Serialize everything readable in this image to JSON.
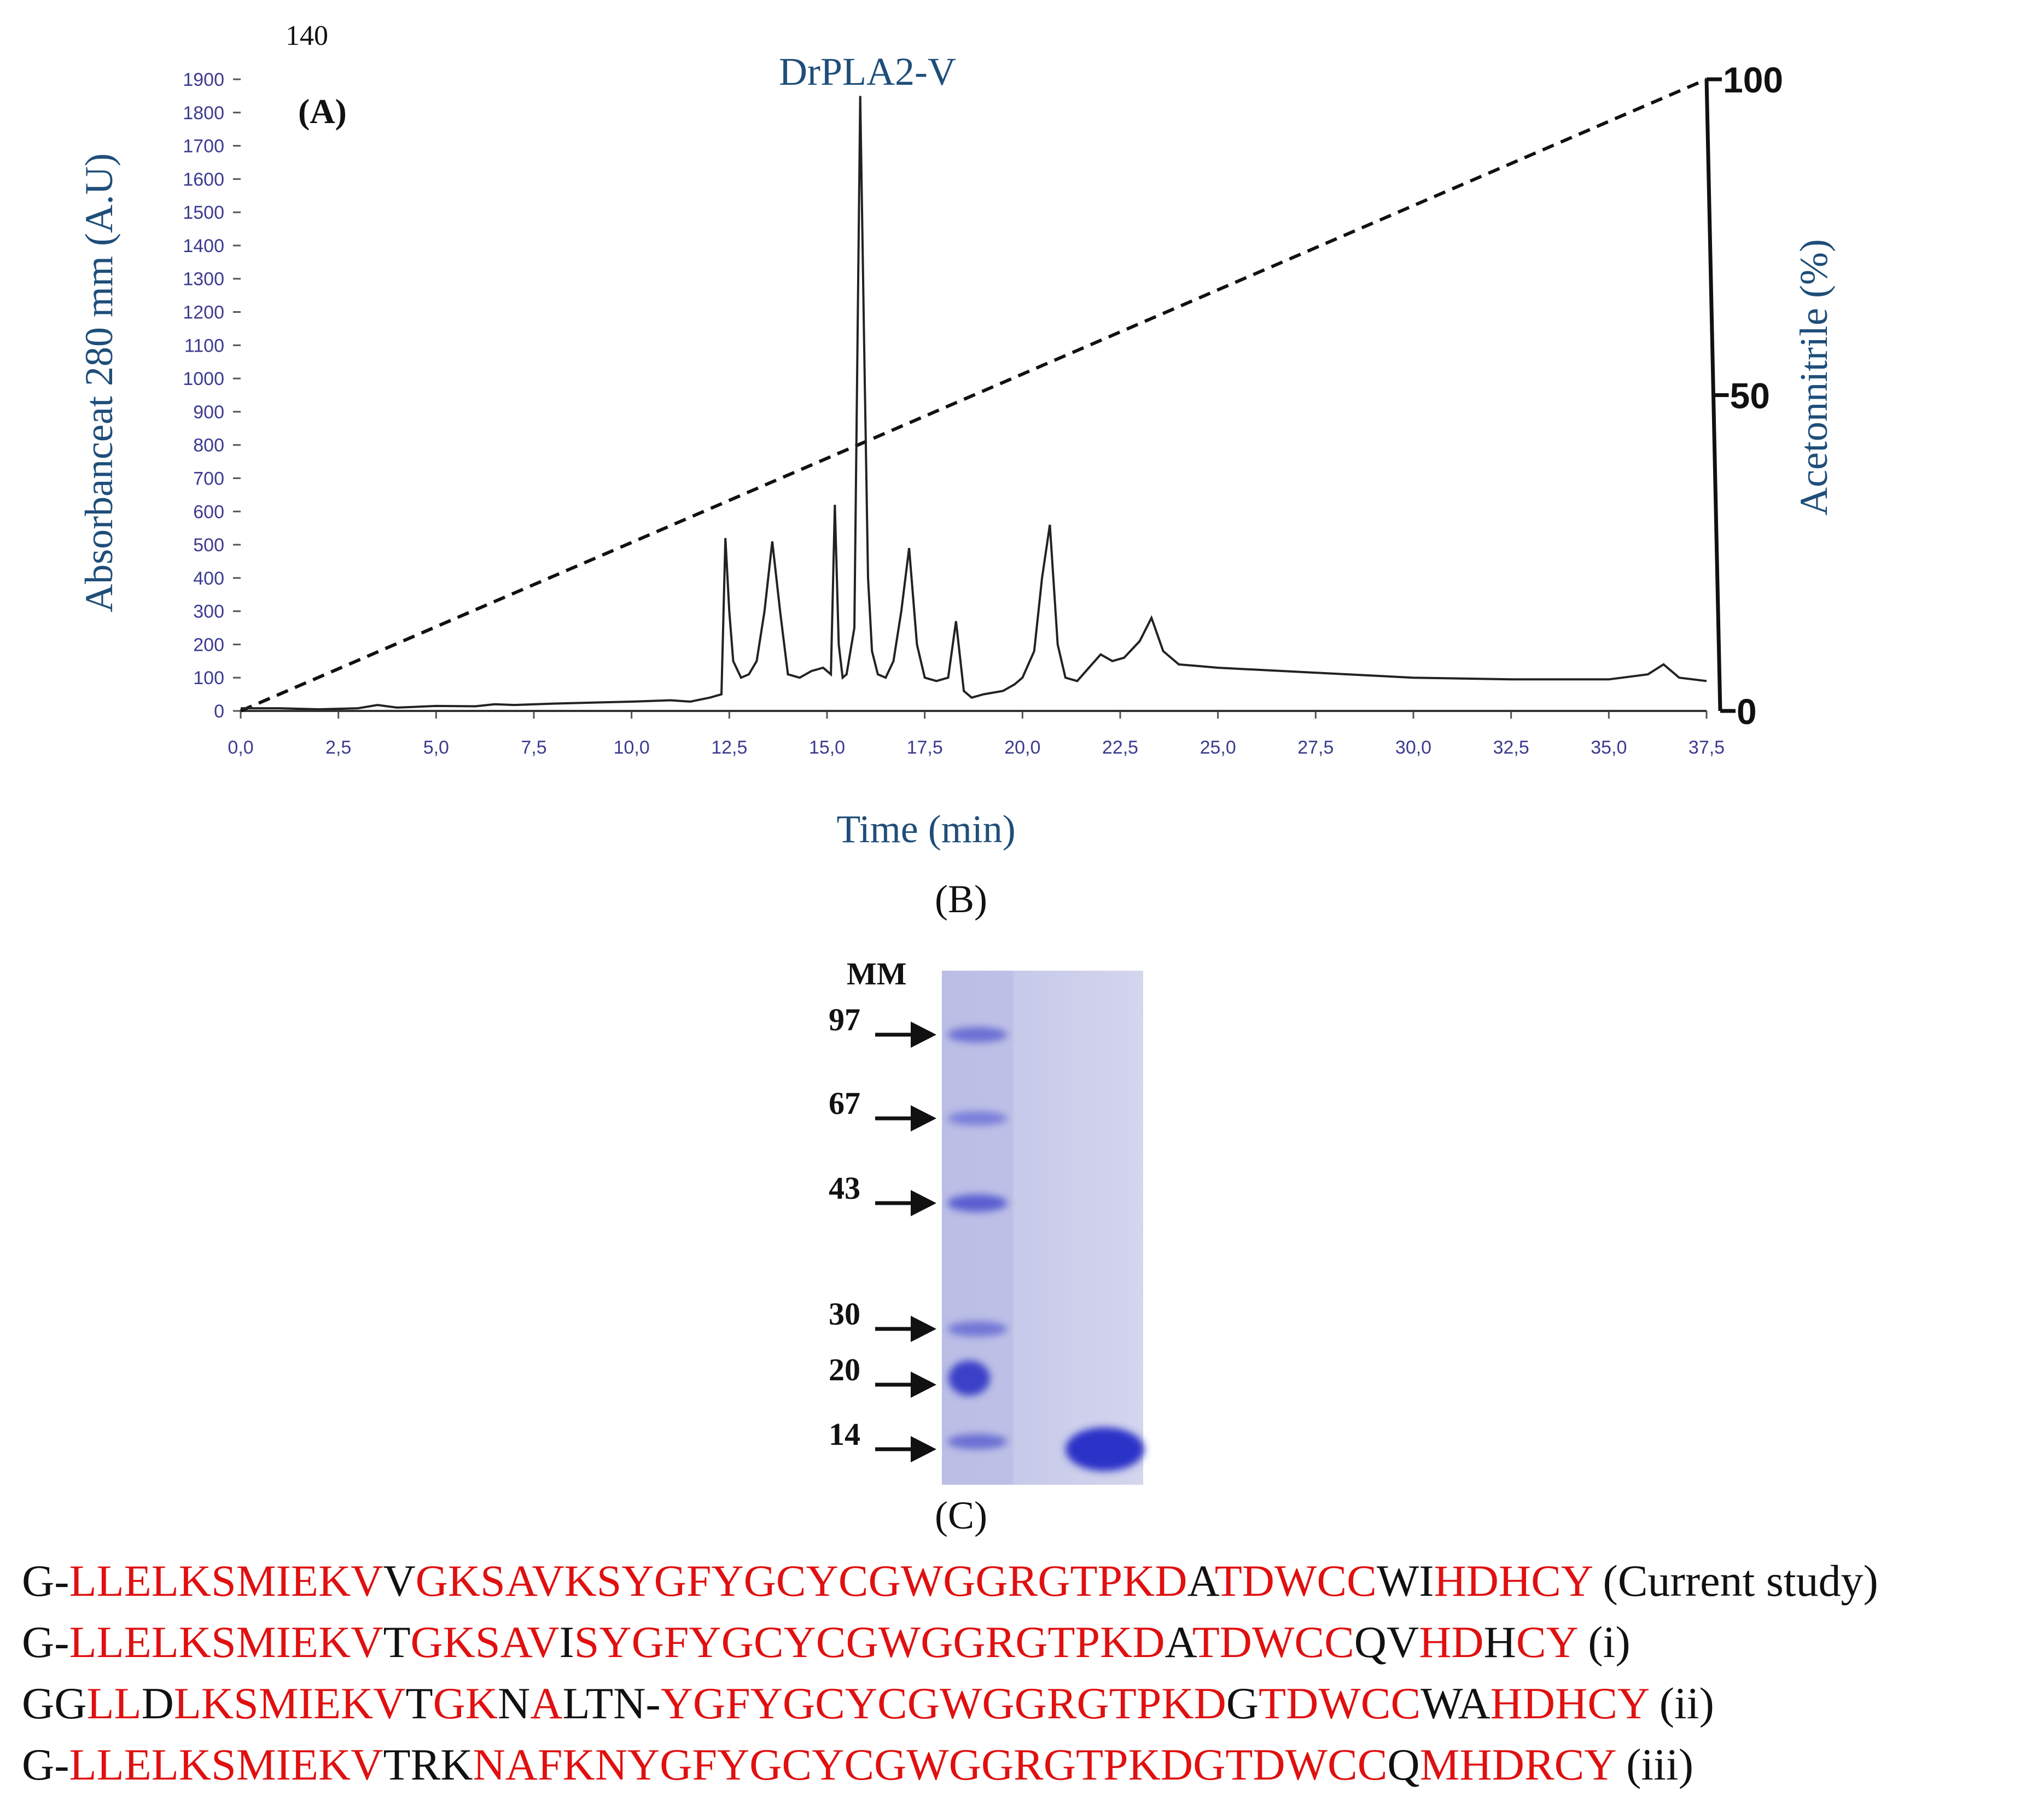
{
  "chart_data": {
    "type": "line",
    "stray_label": "140",
    "panel_label_a": "(A)",
    "title": "DrPLA2-V",
    "xlabel": "Time (min)",
    "ylabel": "Absorbanceat 280 mm (A.U)",
    "ylabel_right": "Acetonnitrile (%)",
    "xlim": [
      0,
      37.5
    ],
    "ylim": [
      0,
      1900
    ],
    "xticks": [
      "0,0",
      "2,5",
      "5,0",
      "7,5",
      "10,0",
      "12,5",
      "15,0",
      "17,5",
      "20,0",
      "22,5",
      "25,0",
      "27,5",
      "30,0",
      "32,5",
      "35,0",
      "37,5"
    ],
    "yticks": [
      "0",
      "100",
      "200",
      "300",
      "400",
      "500",
      "600",
      "700",
      "800",
      "900",
      "1000",
      "1100",
      "1200",
      "1300",
      "1400",
      "1500",
      "1600",
      "1700",
      "1800",
      "1900"
    ],
    "right_ticks": [
      "0",
      "50",
      "100"
    ],
    "right_ylim": [
      0,
      100
    ],
    "series": [
      {
        "name": "Absorbance",
        "x": [
          0,
          1.0,
          2.0,
          3.0,
          3.5,
          4.0,
          5.0,
          6.0,
          6.5,
          7.0,
          8.0,
          9.0,
          10.0,
          11.0,
          11.5,
          12.0,
          12.3,
          12.4,
          12.5,
          12.6,
          12.8,
          13.0,
          13.2,
          13.4,
          13.6,
          13.8,
          14.0,
          14.3,
          14.6,
          14.9,
          15.1,
          15.2,
          15.3,
          15.4,
          15.5,
          15.7,
          15.85,
          15.95,
          16.05,
          16.15,
          16.3,
          16.5,
          16.7,
          16.9,
          17.1,
          17.3,
          17.5,
          17.8,
          18.1,
          18.3,
          18.5,
          18.7,
          19.0,
          19.5,
          19.8,
          20.0,
          20.3,
          20.5,
          20.7,
          20.9,
          21.1,
          21.4,
          21.7,
          22.0,
          22.3,
          22.6,
          23.0,
          23.3,
          23.6,
          24.0,
          24.5,
          25.0,
          27.5,
          30.0,
          32.5,
          35.0,
          36.0,
          36.4,
          36.8,
          37.5
        ],
        "values": [
          8,
          8,
          5,
          8,
          18,
          10,
          15,
          14,
          20,
          18,
          22,
          25,
          28,
          32,
          28,
          40,
          50,
          520,
          300,
          150,
          100,
          110,
          150,
          300,
          510,
          300,
          110,
          100,
          120,
          130,
          110,
          620,
          200,
          100,
          110,
          250,
          1850,
          1100,
          400,
          180,
          110,
          100,
          150,
          300,
          490,
          200,
          100,
          90,
          100,
          270,
          60,
          40,
          50,
          60,
          80,
          100,
          180,
          400,
          560,
          200,
          100,
          90,
          130,
          170,
          150,
          160,
          210,
          280,
          180,
          140,
          135,
          130,
          115,
          100,
          95,
          95,
          110,
          140,
          100,
          90
        ]
      },
      {
        "name": "Acetonitrile gradient",
        "axis": "right",
        "x": [
          0,
          37.5
        ],
        "values": [
          0,
          100
        ]
      }
    ],
    "panel_label_b": "(B)",
    "gel": {
      "header": "MM",
      "markers": [
        "97",
        "67",
        "43",
        "30",
        "20",
        "14"
      ]
    },
    "panel_label_c": "(C)"
  },
  "sequences": [
    {
      "label": "(Current study)",
      "segments": [
        {
          "t": "G-",
          "red": false
        },
        {
          "t": "LLELKSMIEKV",
          "red": true
        },
        {
          "t": "V",
          "red": false
        },
        {
          "t": "GKSAVKSYGFYGCYCGWGGRGTPKD",
          "red": true
        },
        {
          "t": "A",
          "red": false
        },
        {
          "t": "TDWCC",
          "red": true
        },
        {
          "t": "WI",
          "red": false
        },
        {
          "t": "HDHCY",
          "red": true
        }
      ]
    },
    {
      "label": "(i)",
      "segments": [
        {
          "t": "G-",
          "red": false
        },
        {
          "t": "LLELKSMIEKV",
          "red": true
        },
        {
          "t": "T",
          "red": false
        },
        {
          "t": "GKSAV",
          "red": true
        },
        {
          "t": "I",
          "red": false
        },
        {
          "t": "SYGFYGCYCGWGGRGTPKD",
          "red": true
        },
        {
          "t": "A",
          "red": false
        },
        {
          "t": "TDWCC",
          "red": true
        },
        {
          "t": "QV",
          "red": false
        },
        {
          "t": "HD",
          "red": true
        },
        {
          "t": "H",
          "red": false
        },
        {
          "t": "CY",
          "red": true
        }
      ]
    },
    {
      "label": "(ii)",
      "segments": [
        {
          "t": "GG",
          "red": false
        },
        {
          "t": "LL",
          "red": true
        },
        {
          "t": "D",
          "red": false
        },
        {
          "t": "LKSMIEKV",
          "red": true
        },
        {
          "t": "T",
          "red": false
        },
        {
          "t": "GK",
          "red": true
        },
        {
          "t": "N",
          "red": false
        },
        {
          "t": "A",
          "red": true
        },
        {
          "t": "LTN-",
          "red": false
        },
        {
          "t": "YGFYGCYCGWGGRGTPKD",
          "red": true
        },
        {
          "t": "G",
          "red": false
        },
        {
          "t": "TDWCC",
          "red": true
        },
        {
          "t": "WA",
          "red": false
        },
        {
          "t": "HDHCY",
          "red": true
        }
      ]
    },
    {
      "label": "(iii)",
      "segments": [
        {
          "t": "G-",
          "red": false
        },
        {
          "t": "LLELKSMIEKV",
          "red": true
        },
        {
          "t": "TRK",
          "red": false
        },
        {
          "t": "NAFKNYGFYGCYCGWGGRGTPKD",
          "red": true
        },
        {
          "t": "GTDWCC",
          "red": true
        },
        {
          "t": "Q",
          "red": false
        },
        {
          "t": "MHDRCY",
          "red": true
        }
      ]
    }
  ],
  "colors": {
    "axis_text": "#3b3b8f",
    "title": "#1f4e79",
    "red": "#e01010",
    "gel": "#c9cbe8",
    "band": "#4347c8"
  }
}
